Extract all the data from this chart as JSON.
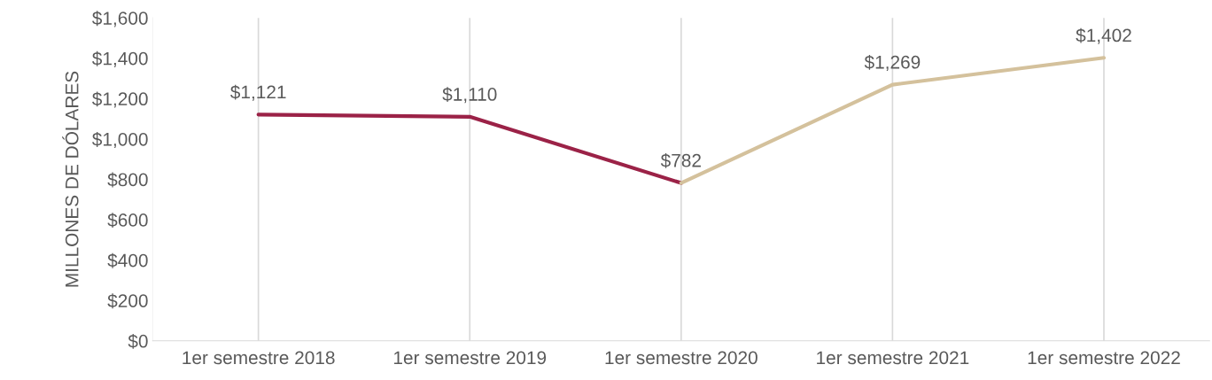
{
  "chart_data": {
    "type": "line",
    "ylabel": "MILLONES DE DÓLARES",
    "categories": [
      "1er semestre 2018",
      "1er semestre 2019",
      "1er semestre 2020",
      "1er semestre 2021",
      "1er semestre 2022"
    ],
    "series": [
      {
        "color": "#9b2247",
        "values": [
          1121,
          1110,
          782,
          null,
          null
        ],
        "value_labels": [
          "$1,121",
          "$1,110",
          "$782",
          null,
          null
        ]
      },
      {
        "color": "#d4c19c",
        "values": [
          null,
          null,
          782,
          1269,
          1402
        ],
        "value_labels": [
          null,
          null,
          null,
          "$1,269",
          "$1,402"
        ]
      }
    ],
    "ylim": [
      0,
      1600
    ],
    "yticks": [
      {
        "value": 0,
        "label": "$0"
      },
      {
        "value": 200,
        "label": "$200"
      },
      {
        "value": 400,
        "label": "$400"
      },
      {
        "value": 600,
        "label": "$600"
      },
      {
        "value": 800,
        "label": "$800"
      },
      {
        "value": 1000,
        "label": "$1,000"
      },
      {
        "value": 1200,
        "label": "$1,200"
      },
      {
        "value": 1400,
        "label": "$1,400"
      },
      {
        "value": 1600,
        "label": "$1,600"
      }
    ],
    "grid": "x",
    "marker": "none",
    "line_style": "solid",
    "legend": false
  }
}
